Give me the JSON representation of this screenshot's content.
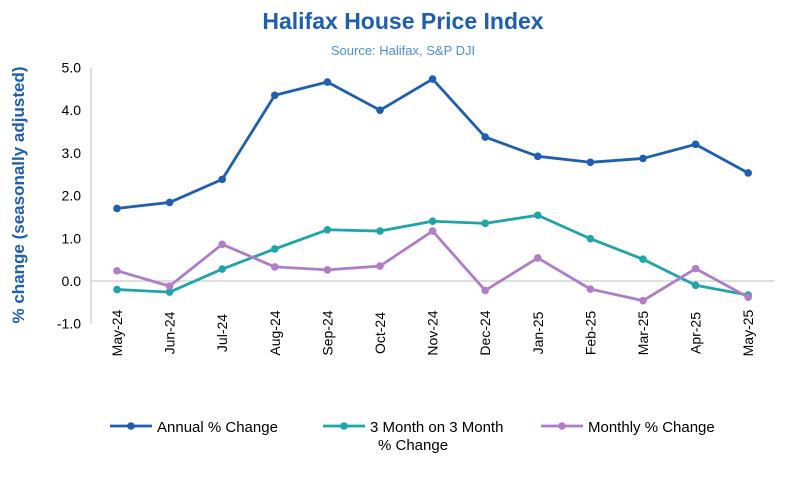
{
  "chart_data": {
    "type": "line",
    "title": "Halifax House Price Index",
    "subtitle": "Source: Halifax,  S&P DJI",
    "ylabel": "% change (seasonally adjusted)",
    "xlabel": "",
    "categories": [
      "May-24",
      "Jun-24",
      "Jul-24",
      "Aug-24",
      "Sep-24",
      "Oct-24",
      "Nov-24",
      "Dec-24",
      "Jan-25",
      "Feb-25",
      "Mar-25",
      "Apr-25",
      "May-25"
    ],
    "ylim": [
      -1.0,
      5.0
    ],
    "yticks": [
      "5.0",
      "4.0",
      "3.0",
      "2.0",
      "1.0",
      "0.0",
      "-1.0"
    ],
    "ytick_values": [
      5,
      4,
      3,
      2,
      1,
      0,
      -1
    ],
    "grid": false,
    "legend_position": "bottom",
    "series": [
      {
        "name": "Annual % Change",
        "color": "#1f5fb0",
        "values": [
          1.7,
          1.84,
          2.38,
          4.35,
          4.66,
          4.0,
          4.73,
          3.37,
          2.92,
          2.78,
          2.87,
          3.2,
          2.53
        ]
      },
      {
        "name": "3 Month on 3 Month % Change",
        "color": "#1ea5aa",
        "values": [
          -0.2,
          -0.26,
          0.28,
          0.75,
          1.2,
          1.17,
          1.4,
          1.35,
          1.54,
          0.99,
          0.51,
          -0.1,
          -0.33
        ]
      },
      {
        "name": "Monthly % Change",
        "color": "#b07ec7",
        "values": [
          0.24,
          -0.12,
          0.86,
          0.33,
          0.26,
          0.35,
          1.17,
          -0.22,
          0.54,
          -0.19,
          -0.46,
          0.29,
          -0.38
        ]
      }
    ],
    "legend_labels": [
      [
        "Annual % Change"
      ],
      [
        "3 Month on 3 Month",
        "% Change"
      ],
      [
        "Monthly % Change"
      ]
    ],
    "title_color": "#1f5fb0",
    "subtitle_color": "#4a90d9",
    "ylabel_color": "#1f5fb0"
  }
}
